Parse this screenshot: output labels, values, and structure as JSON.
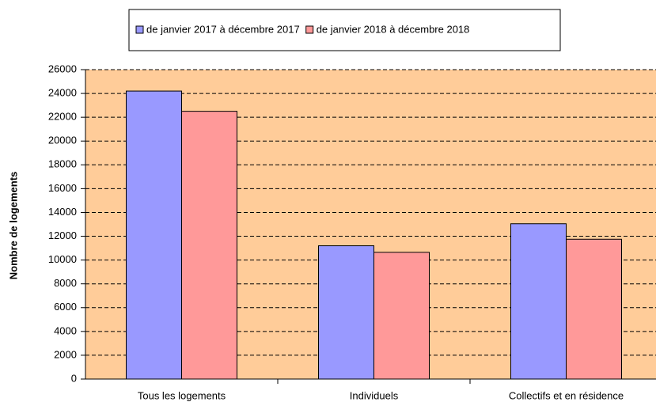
{
  "chart_data": {
    "type": "bar",
    "y_label": "Nombre de logements",
    "categories": [
      "Tous les logements",
      "Individuels",
      "Collectifs et en résidence"
    ],
    "series": [
      {
        "name": "de janvier 2017 à décembre 2017",
        "color": "#9999ff",
        "values": [
          24200,
          11200,
          13050
        ]
      },
      {
        "name": "de janvier 2018 à décembre 2018",
        "color": "#ff9999",
        "values": [
          22500,
          10650,
          11750
        ]
      }
    ],
    "ylim": [
      0,
      26000
    ],
    "yticks": [
      0,
      2000,
      4000,
      6000,
      8000,
      10000,
      12000,
      14000,
      16000,
      18000,
      20000,
      22000,
      24000,
      26000
    ],
    "grid": true,
    "plot_background": "#ffcc99",
    "legend": "top"
  }
}
